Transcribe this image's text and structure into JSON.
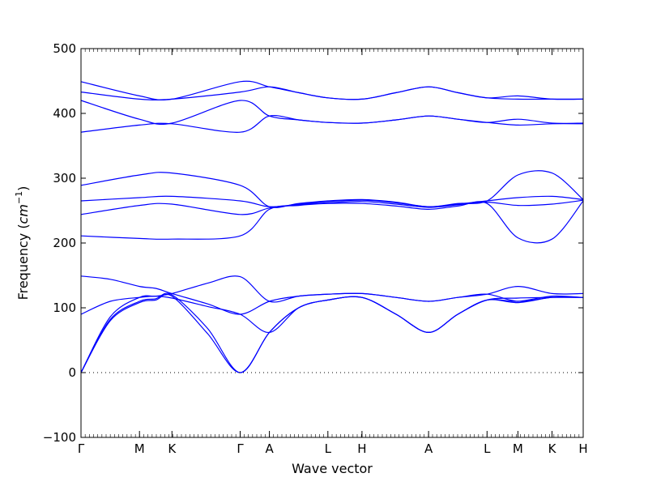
{
  "chart_data": {
    "type": "line",
    "title": "",
    "xlabel": "Wave vector",
    "ylabel_text": "Frequency (",
    "ylabel_unit": "cm",
    "ylabel_exp": "−1",
    "ylabel_close": ")",
    "ylim": [
      -100,
      500
    ],
    "yticks": [
      -100,
      0,
      100,
      200,
      300,
      400,
      500
    ],
    "xlim": [
      0,
      15.46
    ],
    "xticks": [
      {
        "label": "Γ",
        "x": 0
      },
      {
        "label": "M",
        "x": 1.8
      },
      {
        "label": "K",
        "x": 2.8
      },
      {
        "label": "Γ",
        "x": 4.9
      },
      {
        "label": "A",
        "x": 5.8
      },
      {
        "label": "L",
        "x": 7.6
      },
      {
        "label": "H",
        "x": 8.65
      },
      {
        "label": "A",
        "x": 10.7
      },
      {
        "label": "L",
        "x": 12.5
      },
      {
        "label": "M",
        "x": 13.45
      },
      {
        "label": "K",
        "x": 14.5
      },
      {
        "label": "H",
        "x": 15.46
      }
    ],
    "zero_line": true,
    "line_color": "#0000ff",
    "series": [
      {
        "x": [
          0,
          0.9,
          1.8,
          2.3,
          2.8,
          3.9,
          4.9,
          5.8,
          6.7,
          7.6,
          8.65,
          9.7,
          10.7,
          11.6,
          12.5,
          13.45,
          14.5,
          15.46
        ],
        "y": [
          0,
          80,
          108,
          112,
          118,
          60,
          0,
          62,
          100,
          112,
          116,
          90,
          62,
          90,
          112,
          108,
          116,
          116
        ]
      },
      {
        "x": [
          0,
          0.9,
          1.8,
          2.3,
          2.8,
          3.9,
          4.9,
          5.8,
          6.7,
          7.6,
          8.65,
          9.7,
          10.7,
          11.6,
          12.5,
          13.45,
          14.5,
          15.46
        ],
        "y": [
          0,
          82,
          110,
          114,
          120,
          68,
          0,
          62,
          100,
          112,
          116,
          90,
          62,
          90,
          112,
          110,
          118,
          116
        ]
      },
      {
        "x": [
          0,
          0.9,
          1.8,
          2.3,
          2.8,
          3.9,
          4.9,
          5.8,
          6.7,
          7.6,
          8.65,
          9.7,
          10.7,
          11.6,
          12.5,
          13.45,
          14.5,
          15.46
        ],
        "y": [
          90,
          110,
          116,
          118,
          115,
          102,
          90,
          62,
          100,
          112,
          116,
          90,
          62,
          90,
          112,
          115,
          116,
          116
        ]
      },
      {
        "x": [
          0,
          0.9,
          1.8,
          2.3,
          2.8,
          3.9,
          4.9,
          5.8,
          6.7,
          7.6,
          8.65,
          9.7,
          10.7,
          11.6,
          12.5,
          13.45,
          14.5,
          15.46
        ],
        "y": [
          0,
          86,
          116,
          118,
          122,
          138,
          148,
          110,
          118,
          121,
          122,
          116,
          110,
          116,
          121,
          133,
          122,
          122
        ]
      },
      {
        "x": [
          0,
          0.9,
          1.8,
          2.3,
          2.8,
          3.9,
          4.9,
          5.8,
          6.7,
          7.6,
          8.65,
          9.7,
          10.7,
          11.6,
          12.5,
          13.45,
          14.5,
          15.46
        ],
        "y": [
          149,
          144,
          133,
          130,
          122,
          106,
          90,
          110,
          118,
          121,
          122,
          116,
          110,
          116,
          121,
          110,
          116,
          116
        ]
      },
      {
        "x": [
          0,
          1.8,
          2.8,
          4.9,
          5.8,
          6.7,
          7.6,
          8.65,
          9.7,
          10.7,
          11.6,
          12.5,
          13.45,
          14.5,
          15.46
        ],
        "y": [
          211,
          207,
          206,
          211,
          252,
          258,
          261,
          261,
          257,
          252,
          257,
          261,
          208,
          206,
          265
        ]
      },
      {
        "x": [
          0,
          1.8,
          2.8,
          4.9,
          5.8,
          6.7,
          7.6,
          8.65,
          9.7,
          10.7,
          11.6,
          12.5,
          13.45,
          14.5,
          15.46
        ],
        "y": [
          244,
          258,
          260,
          244,
          254,
          259,
          262,
          264,
          260,
          255,
          259,
          263,
          258,
          260,
          266
        ]
      },
      {
        "x": [
          0,
          1.8,
          2.8,
          4.9,
          5.8,
          6.7,
          7.6,
          8.65,
          9.7,
          10.7,
          11.6,
          12.5,
          13.45,
          14.5,
          15.46
        ],
        "y": [
          265,
          270,
          272,
          265,
          256,
          260,
          264,
          266,
          262,
          256,
          260,
          265,
          270,
          272,
          267
        ]
      },
      {
        "x": [
          0,
          1.8,
          2.8,
          4.9,
          5.8,
          6.7,
          7.6,
          8.65,
          9.7,
          10.7,
          11.6,
          12.5,
          13.45,
          14.5,
          15.46
        ],
        "y": [
          289,
          305,
          308,
          289,
          256,
          261,
          265,
          267,
          263,
          256,
          261,
          265,
          305,
          308,
          267
        ]
      },
      {
        "x": [
          0,
          1.8,
          2.8,
          4.9,
          5.8,
          6.7,
          7.6,
          8.65,
          9.7,
          10.7,
          11.6,
          12.5,
          13.45,
          14.5,
          15.46
        ],
        "y": [
          371,
          382,
          384,
          371,
          396,
          390,
          386,
          385,
          390,
          396,
          391,
          386,
          382,
          384,
          384
        ]
      },
      {
        "x": [
          0,
          1.8,
          2.8,
          4.9,
          5.8,
          6.7,
          7.6,
          8.65,
          9.7,
          10.7,
          11.6,
          12.5,
          13.45,
          14.5,
          15.46
        ],
        "y": [
          420,
          391,
          385,
          420,
          396,
          390,
          386,
          385,
          390,
          396,
          391,
          386,
          391,
          385,
          385
        ]
      },
      {
        "x": [
          0,
          1.8,
          2.8,
          4.9,
          5.8,
          6.7,
          7.6,
          8.65,
          9.7,
          10.7,
          11.6,
          12.5,
          13.45,
          14.5,
          15.46
        ],
        "y": [
          433,
          422,
          422,
          433,
          441,
          432,
          424,
          422,
          432,
          441,
          432,
          424,
          422,
          422,
          422
        ]
      },
      {
        "x": [
          0,
          1.8,
          2.8,
          4.9,
          5.8,
          6.7,
          7.6,
          8.65,
          9.7,
          10.7,
          11.6,
          12.5,
          13.45,
          14.5,
          15.46
        ],
        "y": [
          449,
          427,
          422,
          449,
          441,
          432,
          424,
          422,
          432,
          441,
          432,
          424,
          427,
          422,
          422
        ]
      }
    ]
  }
}
